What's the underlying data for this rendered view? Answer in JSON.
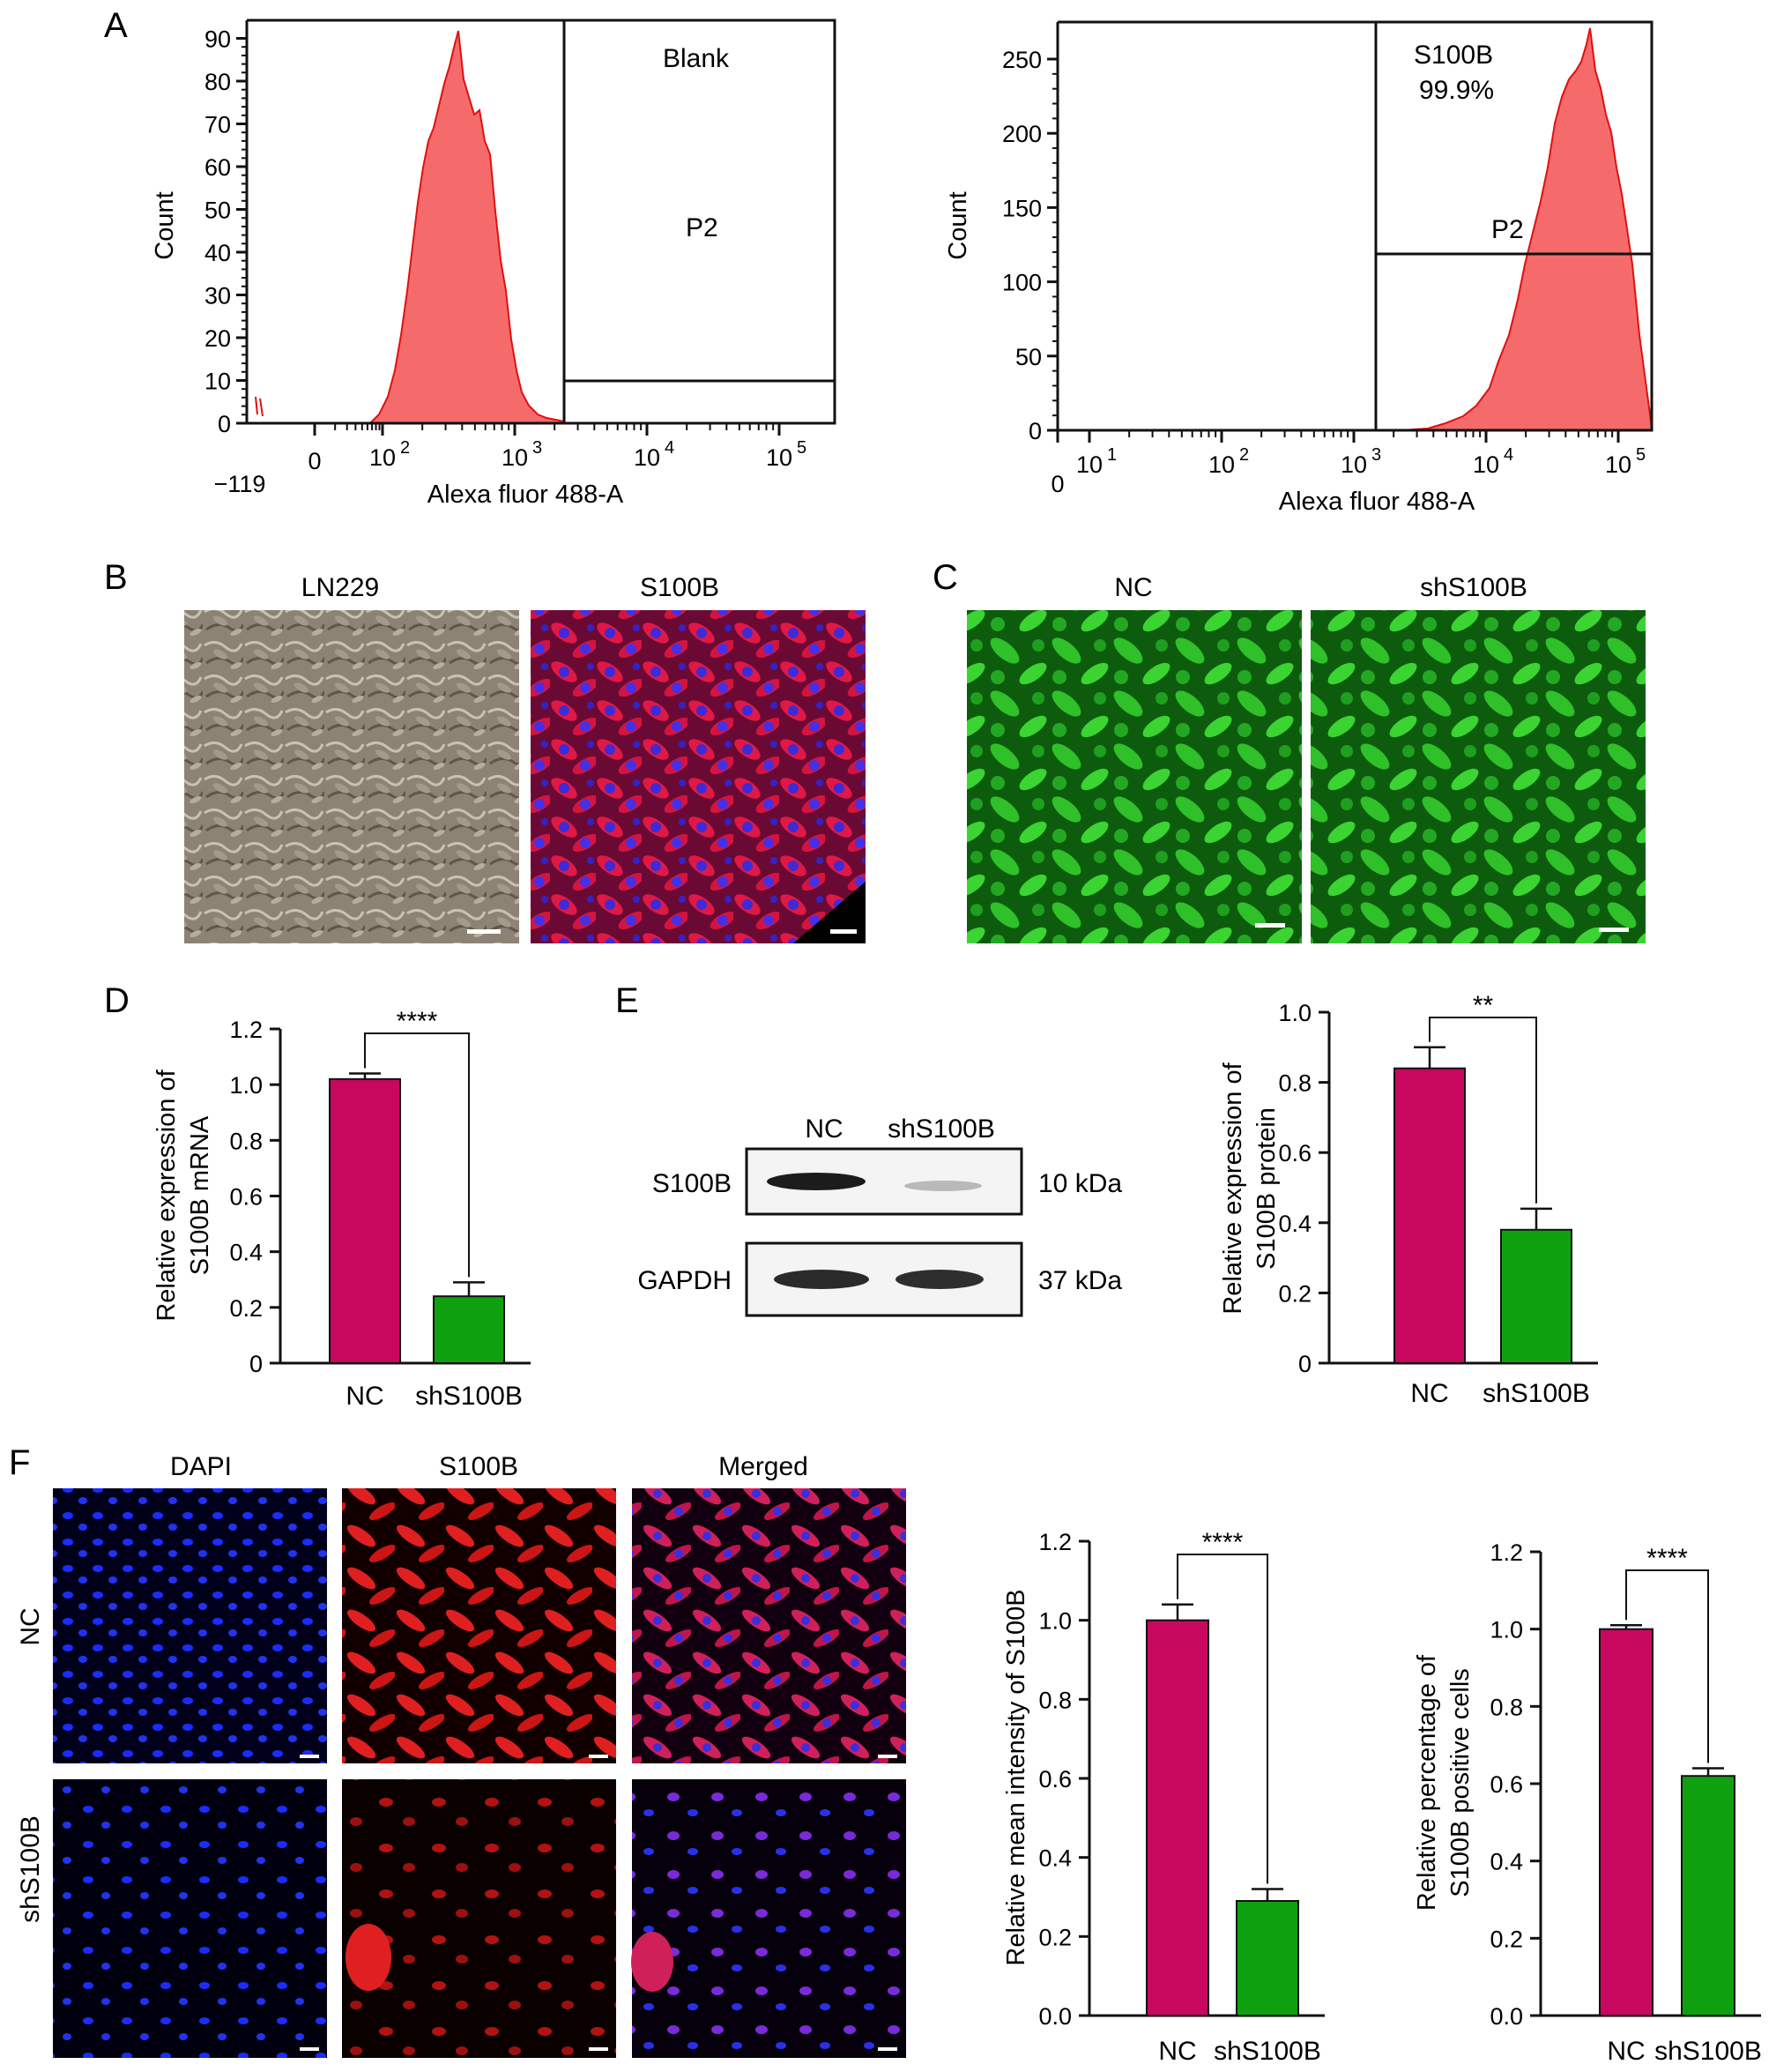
{
  "panels": {
    "A": "A",
    "B": "B",
    "C": "C",
    "D": "D",
    "E": "E",
    "F": "F"
  },
  "colors": {
    "nc": "#c8075f",
    "sh": "#0fa00f",
    "hist": "#f56b6b",
    "hist_edge": "#e01010",
    "green": "#33dd22"
  },
  "flow": {
    "left": {
      "gate_label": "Blank",
      "region_label": "P2",
      "ylabel": "Count",
      "xlabel": "Alexa fluor 488-A",
      "yticks": [
        "0",
        "10",
        "20",
        "30",
        "40",
        "50",
        "60",
        "70",
        "80",
        "90"
      ],
      "xticks": [
        "0",
        "10",
        "10",
        "10",
        "10"
      ],
      "xtick_exps": [
        "",
        "2",
        "3",
        "4",
        "5"
      ],
      "xmin_label": "−119"
    },
    "right": {
      "gate_label": "S100B",
      "gate_pct": "99.9%",
      "region_label": "P2",
      "ylabel": "Count",
      "xlabel": "Alexa fluor 488-A",
      "yticks": [
        "0",
        "50",
        "100",
        "150",
        "200",
        "250"
      ],
      "xticks": [
        "0",
        "10",
        "10",
        "10",
        "10",
        "10"
      ],
      "xtick_exps": [
        "",
        "1",
        "2",
        "3",
        "4",
        "5"
      ]
    }
  },
  "images": {
    "B": {
      "left_title": "LN229",
      "right_title": "S100B"
    },
    "C": {
      "left_title": "NC",
      "right_title": "shS100B"
    },
    "F": {
      "col1": "DAPI",
      "col2": "S100B",
      "col3": "Merged",
      "row1": "NC",
      "row2": "shS100B"
    }
  },
  "western": {
    "lanes": [
      "NC",
      "shS100B"
    ],
    "bands": [
      {
        "name": "S100B",
        "kda": "10 kDa"
      },
      {
        "name": "GAPDH",
        "kda": "37 kDa"
      }
    ]
  },
  "chart_data": [
    {
      "id": "D",
      "type": "bar",
      "categories": [
        "NC",
        "shS100B"
      ],
      "values": [
        1.02,
        0.24
      ],
      "errors": [
        0.02,
        0.05
      ],
      "ylabel": "Relative expression of S100B mRNA",
      "ylabel_lines": [
        "Relative expression of",
        "S100B mRNA"
      ],
      "ylim": [
        0,
        1.2
      ],
      "yticks": [
        "0",
        "0.2",
        "0.4",
        "0.6",
        "0.8",
        "1.0",
        "1.2"
      ],
      "significance": "****"
    },
    {
      "id": "E",
      "type": "bar",
      "categories": [
        "NC",
        "shS100B"
      ],
      "values": [
        0.84,
        0.38
      ],
      "errors": [
        0.06,
        0.06
      ],
      "ylabel": "Relative expression of S100B protein",
      "ylabel_lines": [
        "Relative expression of",
        "S100B protein"
      ],
      "ylim": [
        0,
        1.0
      ],
      "yticks": [
        "0",
        "0.2",
        "0.4",
        "0.6",
        "0.8",
        "1.0"
      ],
      "significance": "**"
    },
    {
      "id": "F1",
      "type": "bar",
      "categories": [
        "NC",
        "shS100B"
      ],
      "values": [
        1.0,
        0.29
      ],
      "errors": [
        0.04,
        0.03
      ],
      "ylabel": "Relative mean intensity of S100B",
      "ylabel_lines": [
        "Relative mean intensity of S100B"
      ],
      "ylim": [
        0,
        1.2
      ],
      "yticks": [
        "0.0",
        "0.2",
        "0.4",
        "0.6",
        "0.8",
        "1.0",
        "1.2"
      ],
      "significance": "****"
    },
    {
      "id": "F2",
      "type": "bar",
      "categories": [
        "NC",
        "shS100B"
      ],
      "values": [
        1.0,
        0.62
      ],
      "errors": [
        0.01,
        0.02
      ],
      "ylabel": "Relative percentage of S100B positive cells",
      "ylabel_lines": [
        "Relative percentage of",
        "S100B positive cells"
      ],
      "ylim": [
        0,
        1.2
      ],
      "yticks": [
        "0.0",
        "0.2",
        "0.4",
        "0.6",
        "0.8",
        "1.0",
        "1.2"
      ],
      "significance": "****"
    }
  ]
}
